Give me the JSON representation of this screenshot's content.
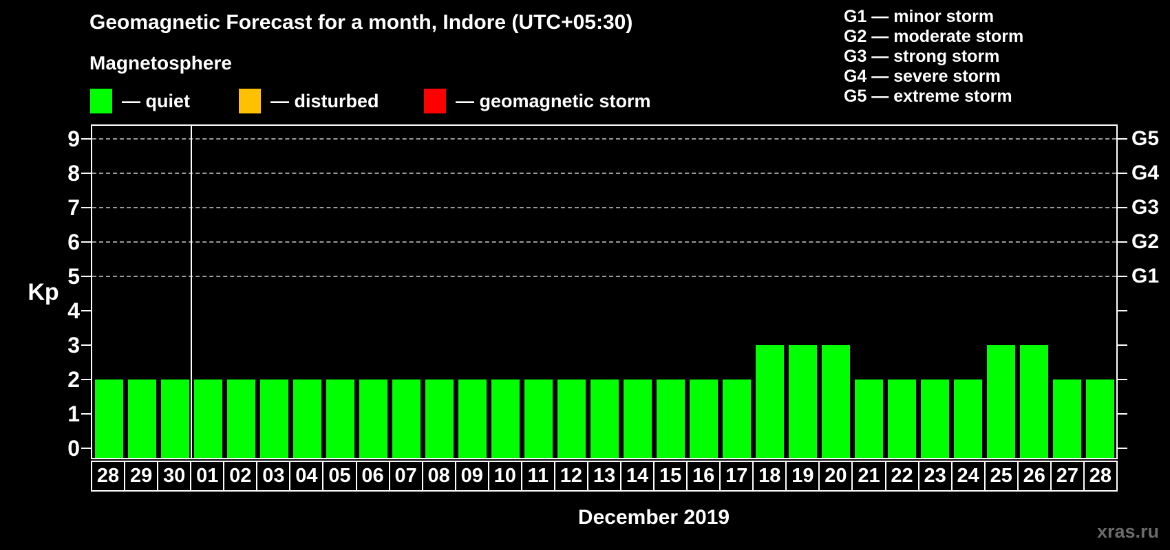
{
  "title": "Geomagnetic Forecast for a month, Indore (UTC+05:30)",
  "subtitle": "Magnetosphere",
  "legend": {
    "items": [
      {
        "name": "quiet",
        "label": "— quiet",
        "color": "#00ff00"
      },
      {
        "name": "disturbed",
        "label": "— disturbed",
        "color": "#ffc000"
      },
      {
        "name": "storm",
        "label": "— geomagnetic storm",
        "color": "#ff0000"
      }
    ]
  },
  "g_legend": {
    "lines": [
      "G1 — minor storm",
      "G2 — moderate storm",
      "G3 — strong storm",
      "G4 — severe storm",
      "G5 — extreme storm"
    ]
  },
  "watermark": "xras.ru",
  "chart_data": {
    "type": "bar",
    "title": "Geomagnetic Forecast for a month, Indore (UTC+05:30)",
    "xlabel": "December 2019",
    "ylabel": "Kp",
    "ylim": [
      0,
      9
    ],
    "y_ticks": [
      0,
      1,
      2,
      3,
      4,
      5,
      6,
      7,
      8,
      9
    ],
    "gridlines_at": [
      5,
      6,
      7,
      8,
      9
    ],
    "grid": "dashed horizontal at storm levels only",
    "legend_position": "top",
    "bar_color": "#00ff00",
    "gridline_color": "#9a9a9a",
    "right_axis": [
      {
        "kp": 5,
        "label": "G1"
      },
      {
        "kp": 6,
        "label": "G2"
      },
      {
        "kp": 7,
        "label": "G3"
      },
      {
        "kp": 8,
        "label": "G4"
      },
      {
        "kp": 9,
        "label": "G5"
      }
    ],
    "categories": [
      "28",
      "29",
      "30",
      "01",
      "02",
      "03",
      "04",
      "05",
      "06",
      "07",
      "08",
      "09",
      "10",
      "11",
      "12",
      "13",
      "14",
      "15",
      "16",
      "17",
      "18",
      "19",
      "20",
      "21",
      "22",
      "23",
      "24",
      "25",
      "26",
      "27",
      "28"
    ],
    "values": [
      2,
      2,
      2,
      2,
      2,
      2,
      2,
      2,
      2,
      2,
      2,
      2,
      2,
      2,
      2,
      2,
      2,
      2,
      2,
      2,
      3,
      3,
      3,
      2,
      2,
      2,
      2,
      3,
      3,
      2,
      2
    ],
    "month_separator_after_index": 2
  }
}
